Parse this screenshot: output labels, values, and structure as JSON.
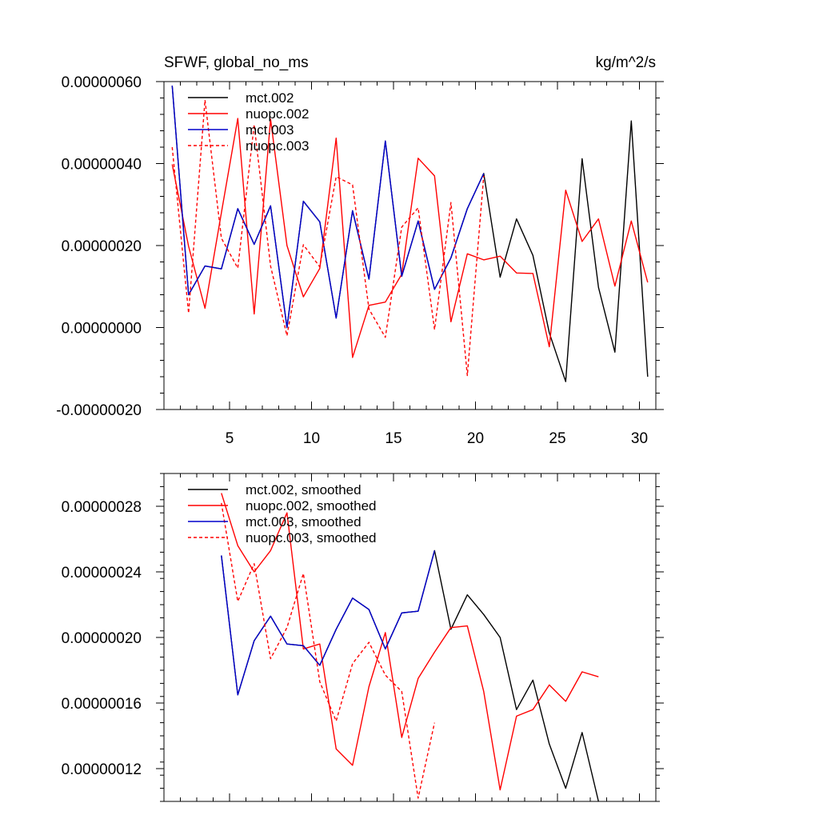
{
  "chart_data": [
    {
      "type": "line",
      "title": "SFWF, global_no_ms",
      "units": "kg/m^2/s",
      "xlim": [
        1,
        31
      ],
      "ylim": [
        -2e-07,
        6e-07
      ],
      "xticks": [
        {
          "value": 5,
          "label": "5"
        },
        {
          "value": 10,
          "label": "10"
        },
        {
          "value": 15,
          "label": "15"
        },
        {
          "value": 20,
          "label": "20"
        },
        {
          "value": 25,
          "label": "25"
        },
        {
          "value": 30,
          "label": "30"
        }
      ],
      "yticks": [
        {
          "value": 6e-07,
          "label": "0.00000060"
        },
        {
          "value": 4e-07,
          "label": "0.00000040"
        },
        {
          "value": 2e-07,
          "label": "0.00000020"
        },
        {
          "value": 0.0,
          "label": "0.00000000"
        },
        {
          "value": -2e-07,
          "label": "-0.00000020"
        }
      ],
      "legend_position": "top-left",
      "series": [
        {
          "name": "mct.002",
          "color": "#000000",
          "dash": "solid",
          "x": [
            1.5,
            2.5,
            3.5,
            4.5,
            5.5,
            6.5,
            7.5,
            8.5,
            9.5,
            10.5,
            11.5,
            12.5,
            13.5,
            14.5,
            15.5,
            16.5,
            17.5,
            18.5,
            19.5,
            20.5,
            21.5,
            22.5,
            23.5,
            24.5,
            25.5,
            26.5,
            27.5,
            28.5,
            29.5,
            30.5
          ],
          "y": [
            5.9e-07,
            8e-08,
            1.5e-07,
            1.43e-07,
            2.9e-07,
            2.03e-07,
            2.97e-07,
            0.0,
            3.08e-07,
            2.58e-07,
            2.3e-08,
            2.85e-07,
            1.18e-07,
            4.55e-07,
            1.25e-07,
            2.6e-07,
            9.3e-08,
            1.7e-07,
            2.9e-07,
            3.76e-07,
            1.23e-07,
            2.65e-07,
            1.76e-07,
            -1.3e-08,
            -1.32e-07,
            4.12e-07,
            9.8e-08,
            -6e-08,
            5.04e-07,
            -1.2e-07
          ]
        },
        {
          "name": "nuopc.002",
          "color": "#ff0000",
          "dash": "solid",
          "x": [
            1.5,
            2.5,
            3.5,
            4.5,
            5.5,
            6.5,
            7.5,
            8.5,
            9.5,
            10.5,
            11.5,
            12.5,
            13.5,
            14.5,
            15.5,
            16.5,
            17.5,
            18.5,
            19.5,
            20.5,
            21.5,
            22.5,
            23.5,
            24.5,
            25.5,
            26.5,
            27.5,
            28.5,
            29.5,
            30.5
          ],
          "y": [
            3.98e-07,
            1.98e-07,
            4.7e-08,
            2.8e-07,
            5.1e-07,
            3.3e-08,
            5.08e-07,
            2e-07,
            7.5e-08,
            1.44e-07,
            4.62e-07,
            -7.3e-08,
            5.4e-08,
            6.2e-08,
            1.3e-07,
            4.13e-07,
            3.7e-07,
            1.4e-08,
            1.8e-07,
            1.65e-07,
            1.74e-07,
            1.33e-07,
            1.32e-07,
            -4.7e-08,
            3.35e-07,
            2.1e-07,
            2.65e-07,
            1.01e-07,
            2.6e-07,
            1.1e-07
          ]
        },
        {
          "name": "mct.003",
          "color": "#0000cc",
          "dash": "solid",
          "x": [
            1.5,
            2.5,
            3.5,
            4.5,
            5.5,
            6.5,
            7.5,
            8.5,
            9.5,
            10.5,
            11.5,
            12.5,
            13.5,
            14.5,
            15.5,
            16.5,
            17.5,
            18.5,
            19.5,
            20.5
          ],
          "y": [
            5.9e-07,
            8e-08,
            1.5e-07,
            1.43e-07,
            2.9e-07,
            2.03e-07,
            2.97e-07,
            0.0,
            3.08e-07,
            2.58e-07,
            2.3e-08,
            2.85e-07,
            1.18e-07,
            4.55e-07,
            1.25e-07,
            2.6e-07,
            9.3e-08,
            1.7e-07,
            2.9e-07,
            3.76e-07
          ]
        },
        {
          "name": "nuopc.003",
          "color": "#ff0000",
          "dash": "dashed",
          "x": [
            1.5,
            2.5,
            3.5,
            4.5,
            5.5,
            6.5,
            7.5,
            8.5,
            9.5,
            10.5,
            11.5,
            12.5,
            13.5,
            14.5,
            15.5,
            16.5,
            17.5,
            18.5,
            19.5,
            20.5
          ],
          "y": [
            4.4e-07,
            3.5e-08,
            5.55e-07,
            2.18e-07,
            1.45e-07,
            4.95e-07,
            1.5e-07,
            -2e-08,
            2.02e-07,
            1.48e-07,
            3.68e-07,
            3.48e-07,
            4.5e-08,
            -2.4e-08,
            2.45e-07,
            2.92e-07,
            -5e-09,
            3.05e-07,
            -1.17e-07,
            3.7e-07
          ]
        }
      ]
    },
    {
      "type": "line",
      "xlim": [
        1,
        31
      ],
      "ylim": [
        1e-07,
        3e-07
      ],
      "xticks": [
        {
          "value": 5,
          "label": ""
        },
        {
          "value": 10,
          "label": ""
        },
        {
          "value": 15,
          "label": ""
        },
        {
          "value": 20,
          "label": ""
        },
        {
          "value": 25,
          "label": ""
        },
        {
          "value": 30,
          "label": ""
        }
      ],
      "yticks": [
        {
          "value": 2.8e-07,
          "label": "0.00000028"
        },
        {
          "value": 2.4e-07,
          "label": "0.00000024"
        },
        {
          "value": 2e-07,
          "label": "0.00000020"
        },
        {
          "value": 1.6e-07,
          "label": "0.00000016"
        },
        {
          "value": 1.2e-07,
          "label": "0.00000012"
        }
      ],
      "legend_position": "top-left",
      "series": [
        {
          "name": "mct.002, smoothed",
          "color": "#000000",
          "dash": "solid",
          "x": [
            4.5,
            5.5,
            6.5,
            7.5,
            8.5,
            9.5,
            10.5,
            11.5,
            12.5,
            13.5,
            14.5,
            15.5,
            16.5,
            17.5,
            18.5,
            19.5,
            20.5,
            21.5,
            22.5,
            23.5,
            24.5,
            25.5,
            26.5,
            27.5
          ],
          "y": [
            2.5e-07,
            1.65e-07,
            1.98e-07,
            2.13e-07,
            1.96e-07,
            1.95e-07,
            1.83e-07,
            2.05e-07,
            2.24e-07,
            2.17e-07,
            1.93e-07,
            2.15e-07,
            2.16e-07,
            2.53e-07,
            2.05e-07,
            2.26e-07,
            2.14e-07,
            2e-07,
            1.56e-07,
            1.74e-07,
            1.35e-07,
            1.08e-07,
            1.42e-07,
            1e-07
          ]
        },
        {
          "name": "nuopc.002, smoothed",
          "color": "#ff0000",
          "dash": "solid",
          "x": [
            4.5,
            5.5,
            6.5,
            7.5,
            8.5,
            9.5,
            10.5,
            11.5,
            12.5,
            13.5,
            14.5,
            15.5,
            16.5,
            17.5,
            18.5,
            19.5,
            20.5,
            21.5,
            22.5,
            23.5,
            24.5,
            25.5,
            26.5,
            27.5
          ],
          "y": [
            2.88e-07,
            2.56e-07,
            2.4e-07,
            2.53e-07,
            2.76e-07,
            1.93e-07,
            1.96e-07,
            1.32e-07,
            1.22e-07,
            1.7e-07,
            2.03e-07,
            1.39e-07,
            1.75e-07,
            1.91e-07,
            2.06e-07,
            2.07e-07,
            1.67e-07,
            1.07e-07,
            1.52e-07,
            1.56e-07,
            1.71e-07,
            1.61e-07,
            1.79e-07,
            1.76e-07
          ]
        },
        {
          "name": "mct.003, smoothed",
          "color": "#0000cc",
          "dash": "solid",
          "x": [
            4.5,
            5.5,
            6.5,
            7.5,
            8.5,
            9.5,
            10.5,
            11.5,
            12.5,
            13.5,
            14.5,
            15.5,
            16.5,
            17.5
          ],
          "y": [
            2.5e-07,
            1.65e-07,
            1.98e-07,
            2.13e-07,
            1.96e-07,
            1.95e-07,
            1.83e-07,
            2.05e-07,
            2.24e-07,
            2.17e-07,
            1.93e-07,
            2.15e-07,
            2.16e-07,
            2.53e-07
          ]
        },
        {
          "name": "nuopc.003, smoothed",
          "color": "#ff0000",
          "dash": "dashed",
          "x": [
            4.5,
            5.5,
            6.5,
            7.5,
            8.5,
            9.5,
            10.5,
            11.5,
            12.5,
            13.5,
            14.5,
            15.5,
            16.5,
            17.5
          ],
          "y": [
            2.82e-07,
            2.22e-07,
            2.45e-07,
            1.87e-07,
            2.06e-07,
            2.39e-07,
            1.73e-07,
            1.49e-07,
            1.84e-07,
            1.97e-07,
            1.77e-07,
            1.67e-07,
            1.02e-07,
            1.48e-07
          ]
        }
      ]
    }
  ]
}
